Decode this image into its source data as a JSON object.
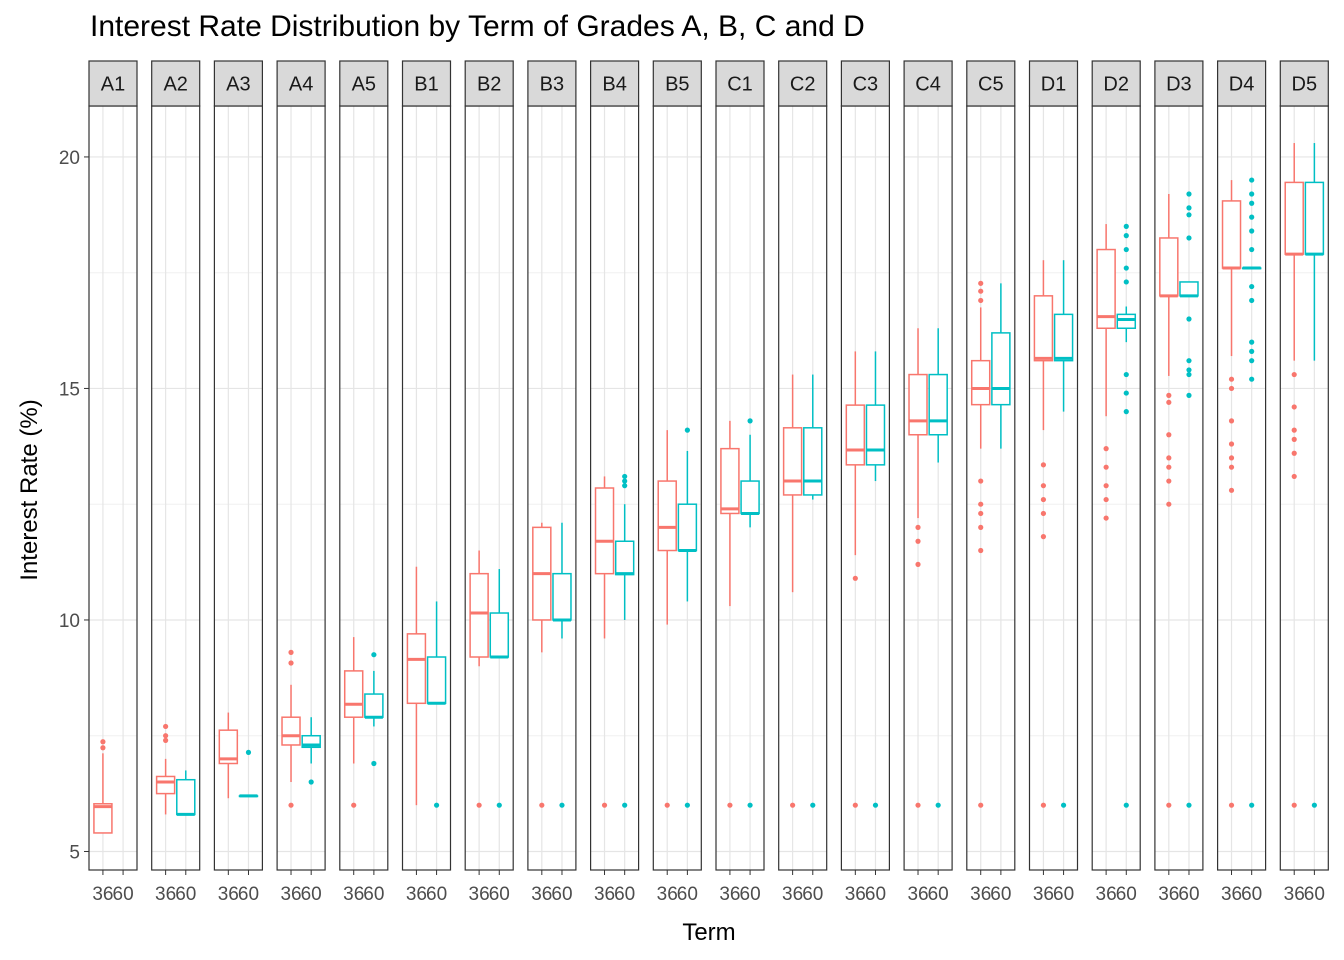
{
  "chart_data": {
    "type": "box",
    "title": "Interest Rate Distribution by Term of Grades A, B, C and D",
    "xlabel": "Term",
    "ylabel": "Interest Rate (%)",
    "ylim": [
      4.6,
      21.1
    ],
    "yticks": [
      5,
      10,
      15,
      20
    ],
    "grid": true,
    "legend": "none",
    "facet_labels": [
      "A1",
      "A2",
      "A3",
      "A4",
      "A5",
      "B1",
      "B2",
      "B3",
      "B4",
      "B5",
      "C1",
      "C2",
      "C3",
      "C4",
      "C5",
      "D1",
      "D2",
      "D3",
      "D4",
      "D5"
    ],
    "x_tick_labels": [
      "36",
      "60"
    ],
    "series_colors": {
      "36": "#F8766D",
      "60": "#00BFC4"
    },
    "facets": [
      {
        "grade": "A1",
        "boxes": [
          {
            "term": "36",
            "min": 5.4,
            "q1": 5.4,
            "median": 5.97,
            "q3": 6.03,
            "max": 7.12,
            "outliers": [
              7.24,
              7.37
            ]
          },
          null
        ]
      },
      {
        "grade": "A2",
        "boxes": [
          {
            "term": "36",
            "min": 5.8,
            "q1": 6.25,
            "median": 6.5,
            "q3": 6.62,
            "max": 7.0,
            "outliers": [
              7.4,
              7.5,
              7.7
            ]
          },
          {
            "term": "60",
            "min": 5.8,
            "q1": 5.8,
            "median": 5.8,
            "q3": 6.55,
            "max": 6.75,
            "outliers": []
          }
        ]
      },
      {
        "grade": "A3",
        "boxes": [
          {
            "term": "36",
            "min": 6.15,
            "q1": 6.9,
            "median": 7.0,
            "q3": 7.62,
            "max": 8.0,
            "outliers": []
          },
          {
            "term": "60",
            "min": 6.2,
            "q1": 6.2,
            "median": 6.2,
            "q3": 6.2,
            "max": 6.2,
            "outliers": [
              7.14
            ]
          }
        ]
      },
      {
        "grade": "A4",
        "boxes": [
          {
            "term": "36",
            "min": 6.5,
            "q1": 7.3,
            "median": 7.5,
            "q3": 7.9,
            "max": 8.6,
            "outliers": [
              6.0,
              9.07,
              9.3
            ]
          },
          {
            "term": "60",
            "min": 6.9,
            "q1": 7.25,
            "median": 7.3,
            "q3": 7.5,
            "max": 7.9,
            "outliers": [
              6.5
            ]
          }
        ]
      },
      {
        "grade": "A5",
        "boxes": [
          {
            "term": "36",
            "min": 6.9,
            "q1": 7.9,
            "median": 8.18,
            "q3": 8.9,
            "max": 9.63,
            "outliers": [
              6.0
            ]
          },
          {
            "term": "60",
            "min": 7.7,
            "q1": 7.9,
            "median": 7.9,
            "q3": 8.4,
            "max": 8.9,
            "outliers": [
              6.9,
              9.25
            ]
          }
        ]
      },
      {
        "grade": "B1",
        "boxes": [
          {
            "term": "36",
            "min": 6.0,
            "q1": 8.2,
            "median": 9.15,
            "q3": 9.7,
            "max": 11.15,
            "outliers": []
          },
          {
            "term": "60",
            "min": 8.2,
            "q1": 8.2,
            "median": 8.2,
            "q3": 9.2,
            "max": 10.4,
            "outliers": [
              6.0
            ]
          }
        ]
      },
      {
        "grade": "B2",
        "boxes": [
          {
            "term": "36",
            "min": 9.0,
            "q1": 9.2,
            "median": 10.15,
            "q3": 11.0,
            "max": 11.5,
            "outliers": [
              6.0
            ]
          },
          {
            "term": "60",
            "min": 9.2,
            "q1": 9.2,
            "median": 9.2,
            "q3": 10.15,
            "max": 11.1,
            "outliers": [
              6.0
            ]
          }
        ]
      },
      {
        "grade": "B3",
        "boxes": [
          {
            "term": "36",
            "min": 9.3,
            "q1": 10.0,
            "median": 11.0,
            "q3": 12.0,
            "max": 12.1,
            "outliers": [
              6.0
            ]
          },
          {
            "term": "60",
            "min": 9.6,
            "q1": 10.0,
            "median": 10.0,
            "q3": 11.0,
            "max": 12.1,
            "outliers": [
              6.0
            ]
          }
        ]
      },
      {
        "grade": "B4",
        "boxes": [
          {
            "term": "36",
            "min": 9.6,
            "q1": 11.0,
            "median": 11.7,
            "q3": 12.85,
            "max": 13.1,
            "outliers": [
              6.0
            ]
          },
          {
            "term": "60",
            "min": 10.0,
            "q1": 10.98,
            "median": 11.0,
            "q3": 11.7,
            "max": 12.5,
            "outliers": [
              6.0,
              12.9,
              13.0,
              13.1
            ]
          }
        ]
      },
      {
        "grade": "B5",
        "boxes": [
          {
            "term": "36",
            "min": 9.9,
            "q1": 11.5,
            "median": 12.0,
            "q3": 13.0,
            "max": 14.1,
            "outliers": [
              6.0
            ]
          },
          {
            "term": "60",
            "min": 10.4,
            "q1": 11.5,
            "median": 11.5,
            "q3": 12.5,
            "max": 13.65,
            "outliers": [
              6.0,
              14.1
            ]
          }
        ]
      },
      {
        "grade": "C1",
        "boxes": [
          {
            "term": "36",
            "min": 10.3,
            "q1": 12.3,
            "median": 12.4,
            "q3": 13.7,
            "max": 14.3,
            "outliers": [
              6.0
            ]
          },
          {
            "term": "60",
            "min": 12.0,
            "q1": 12.3,
            "median": 12.3,
            "q3": 13.0,
            "max": 14.0,
            "outliers": [
              6.0,
              14.3
            ]
          }
        ]
      },
      {
        "grade": "C2",
        "boxes": [
          {
            "term": "36",
            "min": 10.6,
            "q1": 12.7,
            "median": 13.0,
            "q3": 14.15,
            "max": 15.3,
            "outliers": [
              6.0
            ]
          },
          {
            "term": "60",
            "min": 12.6,
            "q1": 12.7,
            "median": 13.0,
            "q3": 14.15,
            "max": 15.3,
            "outliers": [
              6.0
            ]
          }
        ]
      },
      {
        "grade": "C3",
        "boxes": [
          {
            "term": "36",
            "min": 11.4,
            "q1": 13.35,
            "median": 13.67,
            "q3": 14.64,
            "max": 15.8,
            "outliers": [
              6.0,
              10.9
            ]
          },
          {
            "term": "60",
            "min": 13.0,
            "q1": 13.35,
            "median": 13.67,
            "q3": 14.64,
            "max": 15.8,
            "outliers": [
              6.0
            ]
          }
        ]
      },
      {
        "grade": "C4",
        "boxes": [
          {
            "term": "36",
            "min": 12.2,
            "q1": 14.0,
            "median": 14.3,
            "q3": 15.3,
            "max": 16.3,
            "outliers": [
              6.0,
              11.2,
              11.7,
              12.0
            ]
          },
          {
            "term": "60",
            "min": 13.4,
            "q1": 14.0,
            "median": 14.3,
            "q3": 15.3,
            "max": 16.3,
            "outliers": [
              6.0
            ]
          }
        ]
      },
      {
        "grade": "C5",
        "boxes": [
          {
            "term": "36",
            "min": 13.7,
            "q1": 14.65,
            "median": 15.0,
            "q3": 15.6,
            "max": 16.75,
            "outliers": [
              6.0,
              11.5,
              12.0,
              12.3,
              12.5,
              13.0,
              16.9,
              17.1,
              17.27
            ]
          },
          {
            "term": "60",
            "min": 13.7,
            "q1": 14.65,
            "median": 15.0,
            "q3": 16.2,
            "max": 17.27,
            "outliers": []
          }
        ]
      },
      {
        "grade": "D1",
        "boxes": [
          {
            "term": "36",
            "min": 14.1,
            "q1": 15.6,
            "median": 15.65,
            "q3": 17.0,
            "max": 17.77,
            "outliers": [
              6.0,
              11.8,
              12.3,
              12.6,
              12.9,
              13.35
            ]
          },
          {
            "term": "60",
            "min": 14.5,
            "q1": 15.6,
            "median": 15.65,
            "q3": 16.6,
            "max": 17.77,
            "outliers": [
              6.0
            ]
          }
        ]
      },
      {
        "grade": "D2",
        "boxes": [
          {
            "term": "36",
            "min": 14.4,
            "q1": 16.3,
            "median": 16.55,
            "q3": 18.0,
            "max": 18.55,
            "outliers": [
              12.2,
              12.6,
              12.9,
              13.3,
              13.7
            ]
          },
          {
            "term": "60",
            "min": 16.0,
            "q1": 16.3,
            "median": 16.49,
            "q3": 16.6,
            "max": 16.77,
            "outliers": [
              6.0,
              14.5,
              14.9,
              15.3,
              17.3,
              17.6,
              18.0,
              18.3,
              18.5
            ]
          }
        ]
      },
      {
        "grade": "D3",
        "boxes": [
          {
            "term": "36",
            "min": 15.27,
            "q1": 17.0,
            "median": 17.0,
            "q3": 18.25,
            "max": 19.2,
            "outliers": [
              6.0,
              12.5,
              13.0,
              13.3,
              13.5,
              14.0,
              14.7,
              14.85
            ]
          },
          {
            "term": "60",
            "min": 17.0,
            "q1": 17.0,
            "median": 17.0,
            "q3": 17.3,
            "max": 17.3,
            "outliers": [
              6.0,
              14.85,
              15.3,
              15.4,
              15.6,
              16.5,
              18.25,
              18.75,
              18.9,
              19.2
            ]
          }
        ]
      },
      {
        "grade": "D4",
        "boxes": [
          {
            "term": "36",
            "min": 15.7,
            "q1": 17.6,
            "median": 17.6,
            "q3": 19.05,
            "max": 19.5,
            "outliers": [
              6.0,
              12.8,
              13.3,
              13.5,
              13.8,
              14.3,
              15.0,
              15.2
            ]
          },
          {
            "term": "60",
            "min": 17.6,
            "q1": 17.6,
            "median": 17.6,
            "q3": 17.6,
            "max": 17.6,
            "outliers": [
              6.0,
              15.2,
              15.6,
              15.8,
              16.0,
              16.9,
              17.2,
              18.0,
              18.4,
              18.7,
              19.0,
              19.2,
              19.5
            ]
          }
        ]
      },
      {
        "grade": "D5",
        "boxes": [
          {
            "term": "36",
            "min": 15.6,
            "q1": 17.9,
            "median": 17.9,
            "q3": 19.45,
            "max": 20.3,
            "outliers": [
              6.0,
              13.1,
              13.6,
              13.9,
              14.1,
              14.6,
              15.3
            ]
          },
          {
            "term": "60",
            "min": 15.6,
            "q1": 17.9,
            "median": 17.9,
            "q3": 19.45,
            "max": 20.3,
            "outliers": [
              6.0
            ]
          }
        ]
      }
    ]
  }
}
